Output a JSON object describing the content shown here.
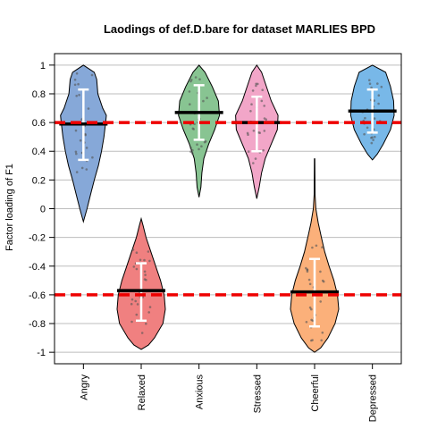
{
  "chart_data": {
    "type": "violin",
    "title": "Laodings of def.D.bare for dataset MARLIES BPD",
    "xlabel": "",
    "ylabel": "Factor loading of F1",
    "ylim": [
      -1.08,
      1.08
    ],
    "yticks": [
      1,
      0.8,
      0.6,
      0.4,
      0.2,
      0,
      -0.2,
      -0.4,
      -0.6,
      -0.8,
      -1
    ],
    "ytick_labels": [
      "1",
      "0.8",
      "0.6",
      "0.4",
      "0.2",
      "0",
      "-0.2",
      "-0.4",
      "-0.6",
      "-0.8",
      "-1"
    ],
    "grid": true,
    "reference_lines": [
      0.6,
      -0.6
    ],
    "reference_line_color": "#ee0000",
    "categories": [
      "Angry",
      "Relaxed",
      "Anxious",
      "Stressed",
      "Cheerful",
      "Depressed"
    ],
    "series": [
      {
        "name": "Angry",
        "color": "#86a8d8",
        "mean": 0.59,
        "sd_low": 0.34,
        "sd_high": 0.83,
        "range": [
          -0.09,
          1.0
        ],
        "profile": [
          [
            -0.09,
            0.0
          ],
          [
            0.0,
            0.15
          ],
          [
            0.1,
            0.3
          ],
          [
            0.2,
            0.45
          ],
          [
            0.3,
            0.62
          ],
          [
            0.4,
            0.75
          ],
          [
            0.5,
            0.85
          ],
          [
            0.6,
            0.92
          ],
          [
            0.65,
            0.95
          ],
          [
            0.7,
            0.8
          ],
          [
            0.8,
            0.6
          ],
          [
            0.9,
            0.55
          ],
          [
            0.95,
            0.45
          ],
          [
            1.0,
            0.0
          ]
        ]
      },
      {
        "name": "Relaxed",
        "color": "#f08080",
        "mean": -0.57,
        "sd_low": -0.78,
        "sd_high": -0.38,
        "range": [
          -0.98,
          -0.07
        ],
        "profile": [
          [
            -0.98,
            0.0
          ],
          [
            -0.95,
            0.3
          ],
          [
            -0.9,
            0.55
          ],
          [
            -0.8,
            0.9
          ],
          [
            -0.7,
            1.0
          ],
          [
            -0.6,
            0.95
          ],
          [
            -0.5,
            0.8
          ],
          [
            -0.4,
            0.6
          ],
          [
            -0.3,
            0.4
          ],
          [
            -0.2,
            0.2
          ],
          [
            -0.12,
            0.08
          ],
          [
            -0.07,
            0.0
          ]
        ]
      },
      {
        "name": "Anxious",
        "color": "#88c492",
        "mean": 0.67,
        "sd_low": 0.48,
        "sd_high": 0.86,
        "range": [
          0.08,
          1.0
        ],
        "profile": [
          [
            0.08,
            0.0
          ],
          [
            0.15,
            0.08
          ],
          [
            0.25,
            0.12
          ],
          [
            0.35,
            0.2
          ],
          [
            0.45,
            0.4
          ],
          [
            0.55,
            0.65
          ],
          [
            0.65,
            0.85
          ],
          [
            0.75,
            0.8
          ],
          [
            0.85,
            0.55
          ],
          [
            0.95,
            0.25
          ],
          [
            1.0,
            0.0
          ]
        ]
      },
      {
        "name": "Stressed",
        "color": "#f2a6c8",
        "mean": 0.6,
        "sd_low": 0.4,
        "sd_high": 0.78,
        "range": [
          0.07,
          1.0
        ],
        "profile": [
          [
            0.07,
            0.0
          ],
          [
            0.15,
            0.1
          ],
          [
            0.25,
            0.2
          ],
          [
            0.35,
            0.35
          ],
          [
            0.45,
            0.6
          ],
          [
            0.55,
            0.85
          ],
          [
            0.65,
            0.88
          ],
          [
            0.75,
            0.6
          ],
          [
            0.85,
            0.4
          ],
          [
            0.95,
            0.2
          ],
          [
            1.0,
            0.0
          ]
        ]
      },
      {
        "name": "Cheerful",
        "color": "#fbb07a",
        "mean": -0.58,
        "sd_low": -0.82,
        "sd_high": -0.35,
        "range": [
          -1.0,
          0.35
        ],
        "profile": [
          [
            -1.0,
            0.0
          ],
          [
            -0.97,
            0.25
          ],
          [
            -0.9,
            0.55
          ],
          [
            -0.8,
            0.85
          ],
          [
            -0.7,
            1.0
          ],
          [
            -0.6,
            0.95
          ],
          [
            -0.5,
            0.8
          ],
          [
            -0.4,
            0.6
          ],
          [
            -0.3,
            0.42
          ],
          [
            -0.2,
            0.28
          ],
          [
            -0.1,
            0.15
          ],
          [
            0.0,
            0.05
          ],
          [
            0.1,
            0.02
          ],
          [
            0.35,
            0.0
          ]
        ]
      },
      {
        "name": "Depressed",
        "color": "#78b8e8",
        "mean": 0.68,
        "sd_low": 0.53,
        "sd_high": 0.83,
        "range": [
          0.34,
          1.0
        ],
        "profile": [
          [
            0.34,
            0.0
          ],
          [
            0.38,
            0.2
          ],
          [
            0.45,
            0.45
          ],
          [
            0.55,
            0.75
          ],
          [
            0.65,
            0.9
          ],
          [
            0.75,
            0.88
          ],
          [
            0.85,
            0.75
          ],
          [
            0.95,
            0.55
          ],
          [
            1.0,
            0.0
          ]
        ]
      }
    ]
  }
}
